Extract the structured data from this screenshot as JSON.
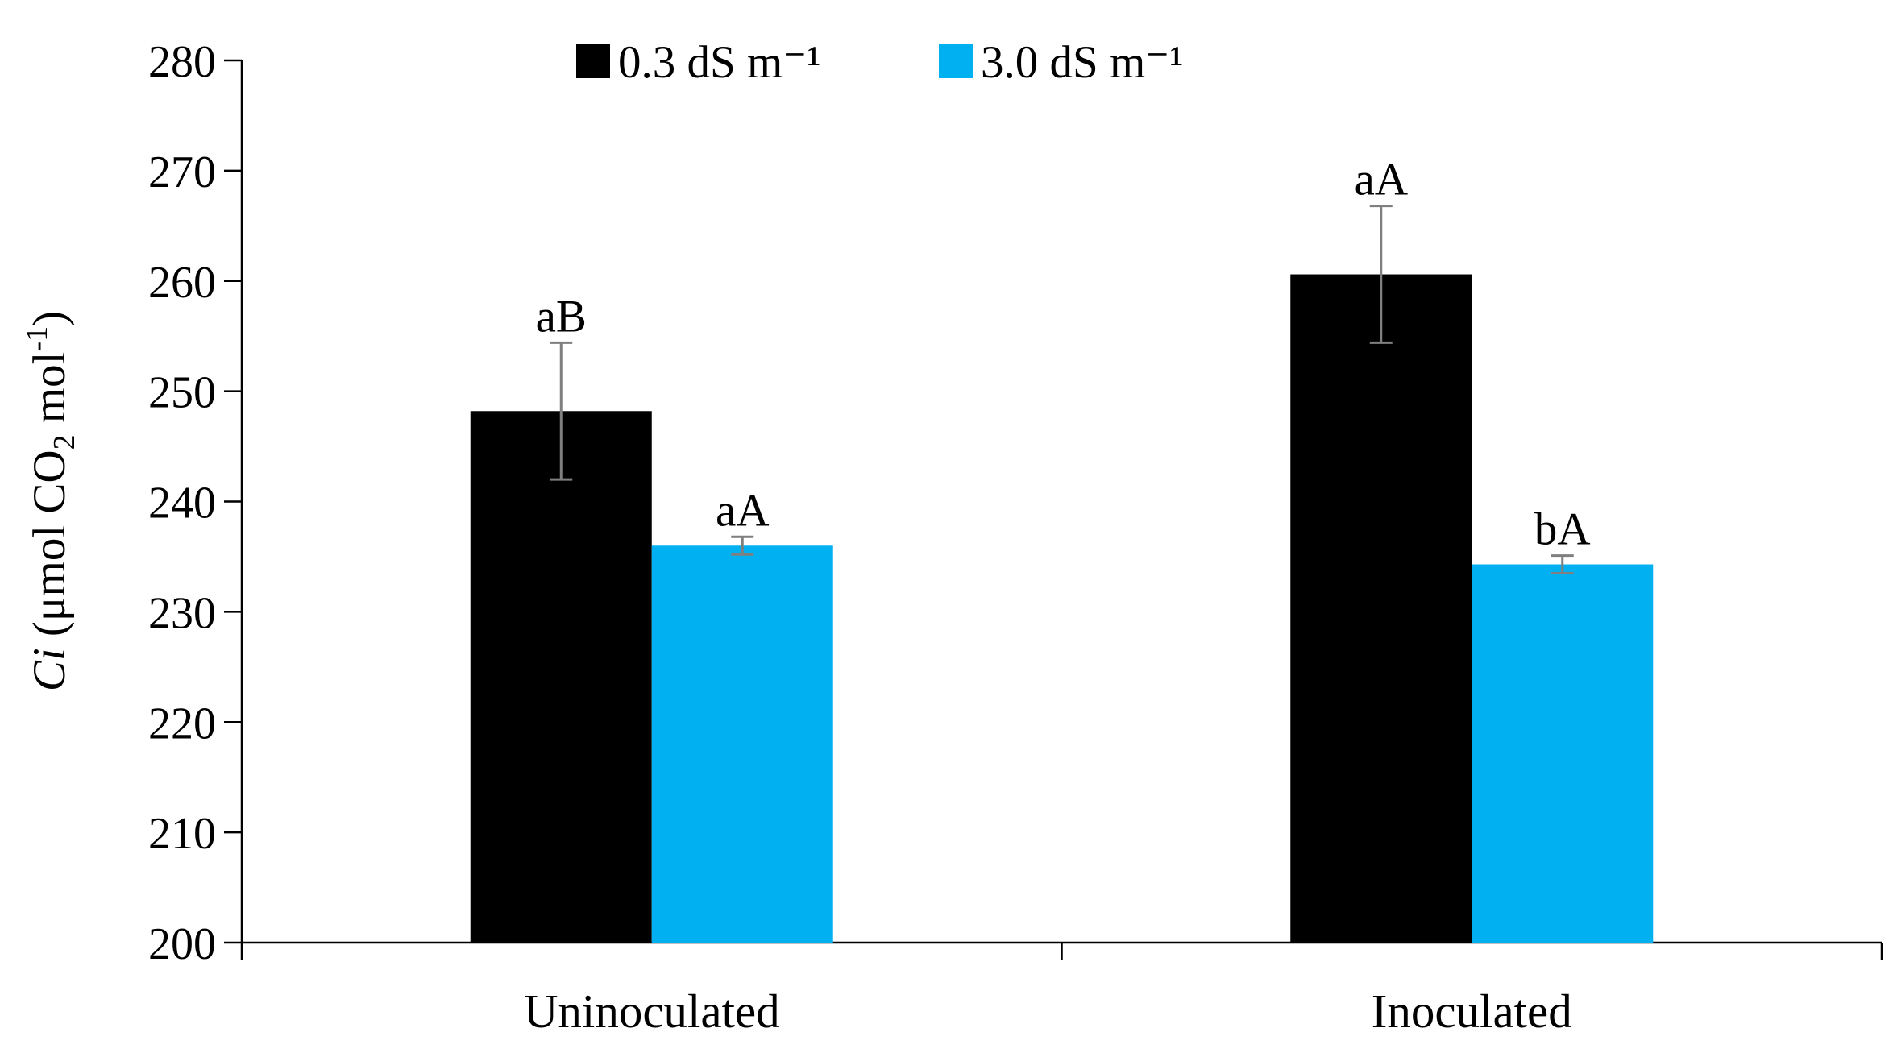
{
  "chart_data": {
    "type": "bar",
    "categories": [
      "Uninoculated",
      "Inoculated"
    ],
    "series": [
      {
        "name": "0.3 dS m⁻¹",
        "color": "#000000",
        "values": [
          248.2,
          260.6
        ],
        "errors": [
          6.2,
          6.2
        ],
        "labels": [
          "aB",
          "aA"
        ]
      },
      {
        "name": "3.0 dS m⁻¹",
        "color": "#00b0f0",
        "values": [
          236.0,
          234.3
        ],
        "errors": [
          0.8,
          0.8
        ],
        "labels": [
          "aA",
          "bA"
        ]
      }
    ],
    "ylim": [
      200,
      280
    ],
    "yticks": [
      200,
      210,
      220,
      230,
      240,
      250,
      260,
      270,
      280
    ],
    "ylabel": {
      "symbol": "Ci",
      "prefix": " (μmol CO",
      "subscript": "2",
      "unit": " mol",
      "superscript": "-1",
      "suffix": ")"
    },
    "xlabel": "",
    "legend_position": "top-center",
    "grid": false
  }
}
